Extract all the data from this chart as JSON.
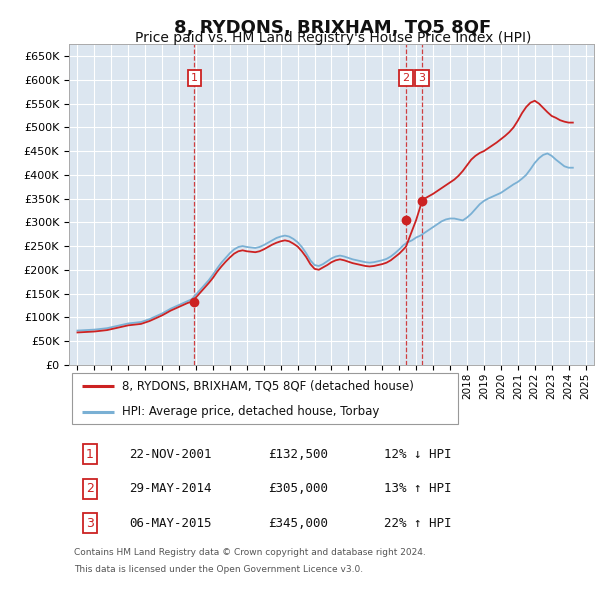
{
  "title": "8, RYDONS, BRIXHAM, TQ5 8QF",
  "subtitle": "Price paid vs. HM Land Registry's House Price Index (HPI)",
  "title_fontsize": 13,
  "subtitle_fontsize": 10,
  "bg_color": "#dce6f0",
  "grid_color": "#ffffff",
  "legend_label_red": "8, RYDONS, BRIXHAM, TQ5 8QF (detached house)",
  "legend_label_blue": "HPI: Average price, detached house, Torbay",
  "footer1": "Contains HM Land Registry data © Crown copyright and database right 2024.",
  "footer2": "This data is licensed under the Open Government Licence v3.0.",
  "transactions": [
    {
      "num": 1,
      "date": "22-NOV-2001",
      "price": 132500,
      "pct": "12%",
      "dir": "↓",
      "year": 2001.9
    },
    {
      "num": 2,
      "date": "29-MAY-2014",
      "price": 305000,
      "pct": "13%",
      "dir": "↑",
      "year": 2014.4
    },
    {
      "num": 3,
      "date": "06-MAY-2015",
      "price": 345000,
      "pct": "22%",
      "dir": "↑",
      "year": 2015.35
    }
  ],
  "hpi_years": [
    1995.0,
    1995.25,
    1995.5,
    1995.75,
    1996.0,
    1996.25,
    1996.5,
    1996.75,
    1997.0,
    1997.25,
    1997.5,
    1997.75,
    1998.0,
    1998.25,
    1998.5,
    1998.75,
    1999.0,
    1999.25,
    1999.5,
    1999.75,
    2000.0,
    2000.25,
    2000.5,
    2000.75,
    2001.0,
    2001.25,
    2001.5,
    2001.75,
    2002.0,
    2002.25,
    2002.5,
    2002.75,
    2003.0,
    2003.25,
    2003.5,
    2003.75,
    2004.0,
    2004.25,
    2004.5,
    2004.75,
    2005.0,
    2005.25,
    2005.5,
    2005.75,
    2006.0,
    2006.25,
    2006.5,
    2006.75,
    2007.0,
    2007.25,
    2007.5,
    2007.75,
    2008.0,
    2008.25,
    2008.5,
    2008.75,
    2009.0,
    2009.25,
    2009.5,
    2009.75,
    2010.0,
    2010.25,
    2010.5,
    2010.75,
    2011.0,
    2011.25,
    2011.5,
    2011.75,
    2012.0,
    2012.25,
    2012.5,
    2012.75,
    2013.0,
    2013.25,
    2013.5,
    2013.75,
    2014.0,
    2014.25,
    2014.5,
    2014.75,
    2015.0,
    2015.25,
    2015.5,
    2015.75,
    2016.0,
    2016.25,
    2016.5,
    2016.75,
    2017.0,
    2017.25,
    2017.5,
    2017.75,
    2018.0,
    2018.25,
    2018.5,
    2018.75,
    2019.0,
    2019.25,
    2019.5,
    2019.75,
    2020.0,
    2020.25,
    2020.5,
    2020.75,
    2021.0,
    2021.25,
    2021.5,
    2021.75,
    2022.0,
    2022.25,
    2022.5,
    2022.75,
    2023.0,
    2023.25,
    2023.5,
    2023.75,
    2024.0,
    2024.25
  ],
  "hpi_values": [
    72000,
    72500,
    73000,
    73500,
    74000,
    75000,
    76000,
    77000,
    79000,
    81000,
    83000,
    85000,
    87000,
    88000,
    89000,
    90000,
    93000,
    96000,
    100000,
    104000,
    108000,
    113000,
    118000,
    122000,
    126000,
    130000,
    134000,
    138000,
    148000,
    158000,
    168000,
    178000,
    190000,
    203000,
    215000,
    225000,
    235000,
    243000,
    248000,
    250000,
    248000,
    247000,
    246000,
    248000,
    252000,
    257000,
    262000,
    267000,
    270000,
    272000,
    270000,
    265000,
    258000,
    248000,
    235000,
    220000,
    210000,
    208000,
    212000,
    218000,
    224000,
    228000,
    230000,
    228000,
    225000,
    222000,
    220000,
    218000,
    216000,
    215000,
    216000,
    218000,
    220000,
    223000,
    228000,
    235000,
    243000,
    252000,
    258000,
    262000,
    268000,
    272000,
    278000,
    284000,
    290000,
    296000,
    302000,
    306000,
    308000,
    308000,
    306000,
    304000,
    310000,
    318000,
    328000,
    338000,
    345000,
    350000,
    354000,
    358000,
    362000,
    368000,
    374000,
    380000,
    385000,
    392000,
    400000,
    412000,
    425000,
    435000,
    442000,
    445000,
    440000,
    432000,
    425000,
    418000,
    415000,
    415000
  ],
  "red_years": [
    1995.0,
    1995.25,
    1995.5,
    1995.75,
    1996.0,
    1996.25,
    1996.5,
    1996.75,
    1997.0,
    1997.25,
    1997.5,
    1997.75,
    1998.0,
    1998.25,
    1998.5,
    1998.75,
    1999.0,
    1999.25,
    1999.5,
    1999.75,
    2000.0,
    2000.25,
    2000.5,
    2000.75,
    2001.0,
    2001.25,
    2001.5,
    2001.75,
    2001.9,
    2002.0,
    2002.25,
    2002.5,
    2002.75,
    2003.0,
    2003.25,
    2003.5,
    2003.75,
    2004.0,
    2004.25,
    2004.5,
    2004.75,
    2005.0,
    2005.25,
    2005.5,
    2005.75,
    2006.0,
    2006.25,
    2006.5,
    2006.75,
    2007.0,
    2007.25,
    2007.5,
    2007.75,
    2008.0,
    2008.25,
    2008.5,
    2008.75,
    2009.0,
    2009.25,
    2009.5,
    2009.75,
    2010.0,
    2010.25,
    2010.5,
    2010.75,
    2011.0,
    2011.25,
    2011.5,
    2011.75,
    2012.0,
    2012.25,
    2012.5,
    2012.75,
    2013.0,
    2013.25,
    2013.5,
    2013.75,
    2014.0,
    2014.25,
    2014.4,
    2015.0,
    2015.35,
    2015.5,
    2015.75,
    2016.0,
    2016.25,
    2016.5,
    2016.75,
    2017.0,
    2017.25,
    2017.5,
    2017.75,
    2018.0,
    2018.25,
    2018.5,
    2018.75,
    2019.0,
    2019.25,
    2019.5,
    2019.75,
    2020.0,
    2020.25,
    2020.5,
    2020.75,
    2021.0,
    2021.25,
    2021.5,
    2021.75,
    2022.0,
    2022.25,
    2022.5,
    2022.75,
    2023.0,
    2023.25,
    2023.5,
    2023.75,
    2024.0,
    2024.25
  ],
  "red_values": [
    68000,
    68500,
    69000,
    69500,
    70000,
    71000,
    72000,
    73000,
    75000,
    77000,
    79000,
    81000,
    83000,
    84000,
    85000,
    86000,
    89000,
    92000,
    96000,
    100000,
    104000,
    109000,
    114000,
    118000,
    122000,
    126000,
    130000,
    133000,
    132500,
    142000,
    152000,
    162000,
    172000,
    183000,
    196000,
    207000,
    217000,
    226000,
    234000,
    239000,
    241000,
    239000,
    238000,
    237000,
    239000,
    243000,
    248000,
    253000,
    257000,
    260000,
    262000,
    260000,
    255000,
    249000,
    239000,
    227000,
    212000,
    202000,
    200000,
    205000,
    210000,
    216000,
    220000,
    222000,
    220000,
    217000,
    214000,
    212000,
    210000,
    208000,
    207000,
    208000,
    210000,
    212000,
    215000,
    220000,
    227000,
    234000,
    243000,
    249000,
    305000,
    345000,
    350000,
    355000,
    360000,
    366000,
    372000,
    378000,
    384000,
    390000,
    398000,
    408000,
    420000,
    432000,
    440000,
    446000,
    450000,
    456000,
    462000,
    468000,
    475000,
    482000,
    490000,
    500000,
    514000,
    530000,
    543000,
    552000,
    556000,
    550000,
    541000,
    532000,
    524000,
    520000,
    515000,
    512000,
    510000,
    510000
  ],
  "ylim": [
    0,
    675000
  ],
  "yticks": [
    0,
    50000,
    100000,
    150000,
    200000,
    250000,
    300000,
    350000,
    400000,
    450000,
    500000,
    550000,
    600000,
    650000
  ],
  "xlim": [
    1994.5,
    2025.5
  ],
  "xticks": [
    1995,
    1996,
    1997,
    1998,
    1999,
    2000,
    2001,
    2002,
    2003,
    2004,
    2005,
    2006,
    2007,
    2008,
    2009,
    2010,
    2011,
    2012,
    2013,
    2014,
    2015,
    2016,
    2017,
    2018,
    2019,
    2020,
    2021,
    2022,
    2023,
    2024,
    2025
  ]
}
